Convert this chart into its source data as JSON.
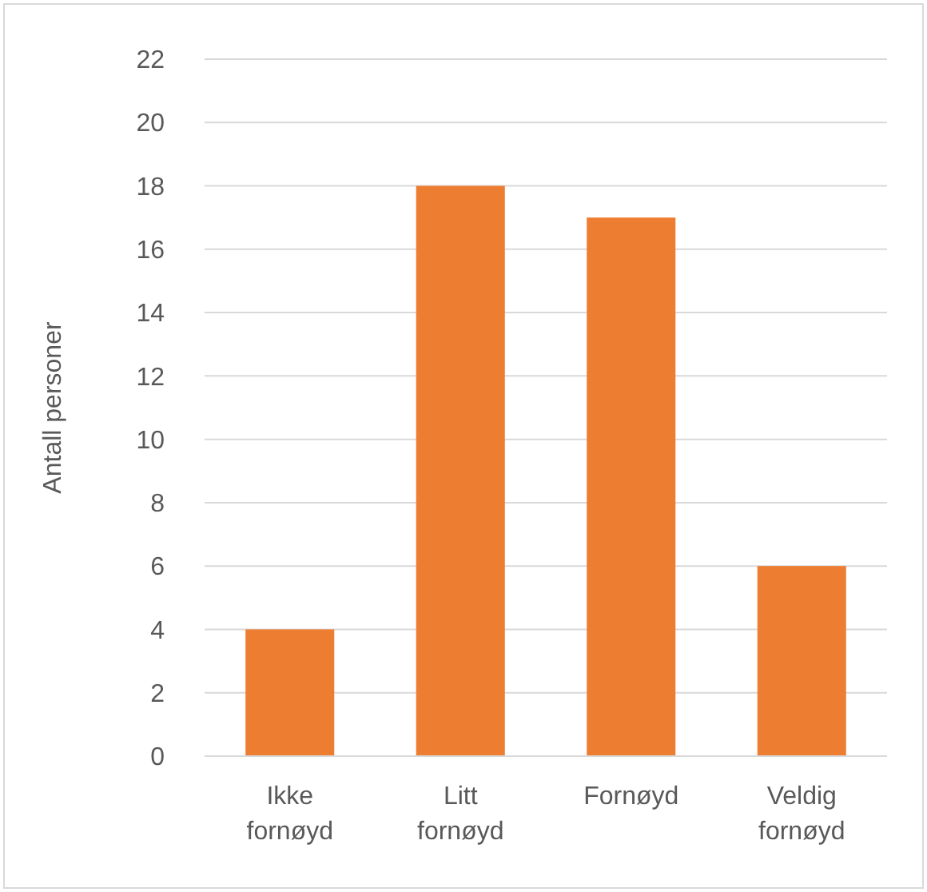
{
  "chart_data": {
    "type": "bar",
    "ylabel": "Antall personer",
    "categories": [
      "Ikke fornøyd",
      "Litt fornøyd",
      "Fornøyd",
      "Veldig fornøyd"
    ],
    "values": [
      4,
      18,
      17,
      6
    ],
    "color": "#ed7d31",
    "ylim": [
      0,
      22
    ],
    "yticks": [
      0,
      2,
      4,
      6,
      8,
      10,
      12,
      14,
      16,
      18,
      20,
      22
    ],
    "grid": "y"
  }
}
